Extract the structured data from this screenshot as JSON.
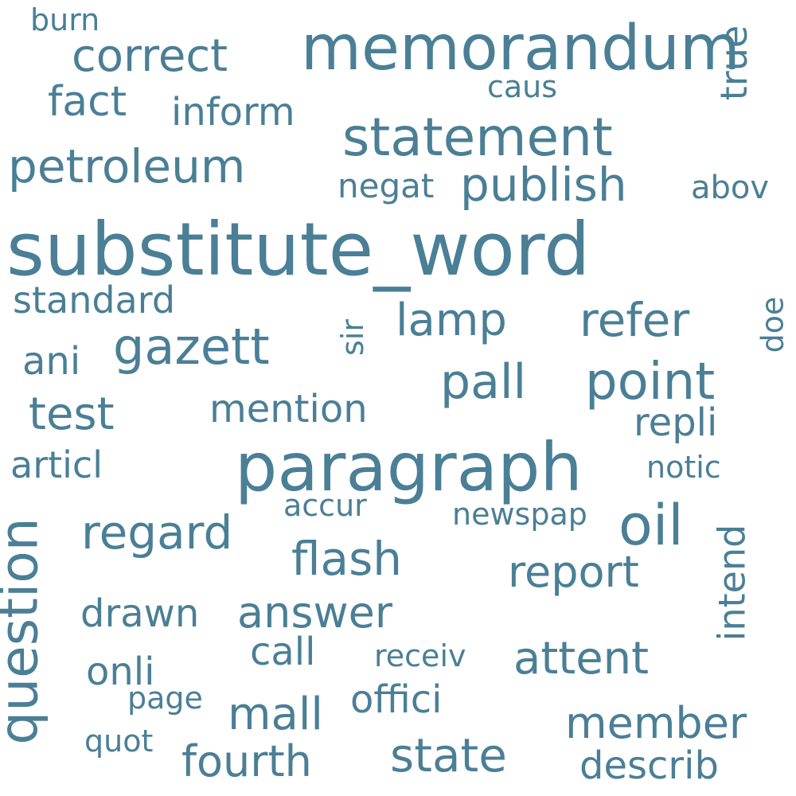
{
  "color": "#4a7f96",
  "words": [
    "substitute_word",
    "paragraph",
    "memorandum",
    "statement",
    "question",
    "petroleum",
    "publish",
    "correct",
    "gazett",
    "point",
    "refer",
    "oil",
    "pall",
    "lamp",
    "report",
    "regard",
    "flash",
    "answer",
    "attent",
    "state",
    "fourth",
    "member",
    "describ",
    "mall",
    "offici",
    "call",
    "mention",
    "test",
    "drawn",
    "fact",
    "inform",
    "standard",
    "repli",
    "articl",
    "intend",
    "true",
    "ani",
    "onli",
    "negat",
    "abov",
    "burn",
    "caus",
    "sir",
    "doe",
    "notic",
    "newspap",
    "accur",
    "receiv",
    "page",
    "quot"
  ]
}
